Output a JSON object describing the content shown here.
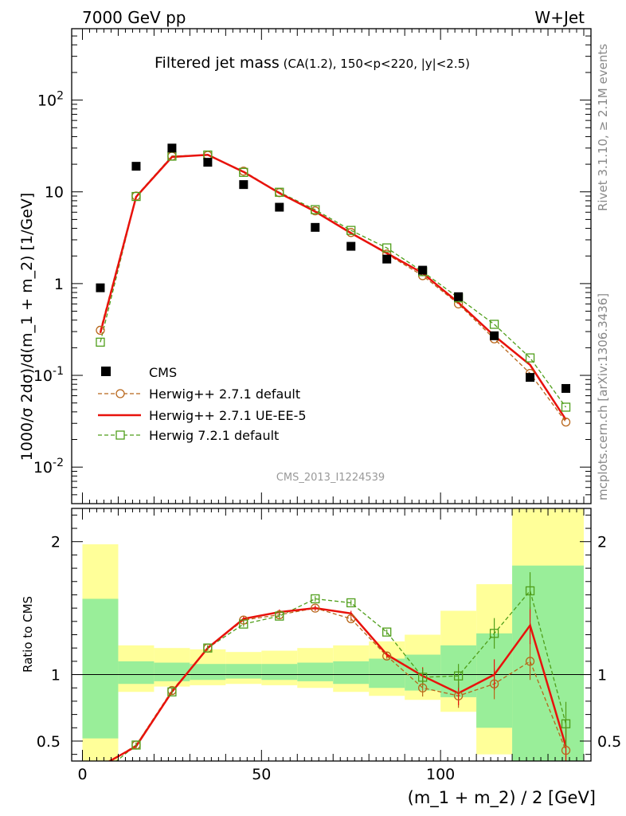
{
  "header": {
    "left": "7000 GeV pp",
    "right": "W+Jet"
  },
  "side_labels": {
    "rivet": "Rivet 3.1.10, ≥ 2.1M events",
    "mcplots": "mcplots.cern.ch [arXiv:1306.3436]"
  },
  "chart_data": [
    {
      "type": "scatter",
      "panel": "main",
      "title": "Filtered jet mass",
      "title_sub": "(CA(1.2), 150<p_T<220, |y|<2.5)",
      "ylabel": "1000/σ 2dσ)/d(m_1 + m_2) [1/GeV]",
      "yscale": "log",
      "ylim": [
        0.004,
        600
      ],
      "xlim": [
        -3,
        142
      ],
      "yticks": [
        "10^-2",
        "10^-1",
        "1",
        "10",
        "10^2"
      ],
      "watermark": "CMS_2013_I1224539",
      "legend_position": "bottom-left",
      "x": [
        5,
        15,
        25,
        35,
        45,
        55,
        65,
        75,
        85,
        95,
        105,
        115,
        125,
        135
      ],
      "series": [
        {
          "name": "CMS",
          "style": "square-marker",
          "color": "#000000",
          "values": [
            0.9,
            19,
            30,
            21,
            12,
            6.8,
            4.1,
            2.55,
            1.85,
            1.4,
            0.72,
            0.27,
            0.095,
            0.072
          ]
        },
        {
          "name": "Herwig++ 2.7.1 default",
          "style": "dashed-circle",
          "color": "#b8661a",
          "values": [
            0.31,
            9.0,
            24.5,
            25.0,
            16.8,
            9.8,
            6.2,
            3.6,
            2.1,
            1.22,
            0.6,
            0.25,
            0.105,
            0.031
          ]
        },
        {
          "name": "Herwig++ 2.7.1 UE-EE-5",
          "style": "solid-line",
          "color": "#e8120c",
          "values": [
            0.29,
            8.8,
            24.0,
            25.3,
            16.5,
            9.7,
            6.1,
            3.55,
            2.15,
            1.3,
            0.62,
            0.27,
            0.13,
            0.033
          ]
        },
        {
          "name": "Herwig 7.2.1 default",
          "style": "dashed-square",
          "color": "#4f9e1a",
          "values": [
            0.23,
            8.9,
            24.5,
            25.2,
            16.3,
            9.9,
            6.4,
            3.8,
            2.45,
            1.35,
            0.7,
            0.36,
            0.155,
            0.045
          ]
        }
      ]
    },
    {
      "type": "line",
      "panel": "ratio",
      "ylabel": "Ratio to CMS",
      "xlabel": "(m_1 + m_2) / 2 [GeV]",
      "ylim": [
        0.35,
        2.25
      ],
      "xlim": [
        -3,
        142
      ],
      "xticks": [
        0,
        50,
        100
      ],
      "yticks": [
        0.5,
        1,
        2
      ],
      "bands": {
        "edges": [
          0,
          10,
          20,
          30,
          40,
          50,
          60,
          70,
          80,
          90,
          100,
          110,
          120,
          140
        ],
        "yellow_lo": [
          0.34,
          0.87,
          0.91,
          0.92,
          0.93,
          0.92,
          0.9,
          0.87,
          0.84,
          0.81,
          0.72,
          0.4,
          0.35
        ],
        "yellow_hi": [
          1.98,
          1.22,
          1.2,
          1.19,
          1.17,
          1.18,
          1.2,
          1.22,
          1.25,
          1.3,
          1.48,
          1.68,
          2.3
        ],
        "green_lo": [
          0.52,
          0.93,
          0.95,
          0.96,
          0.97,
          0.96,
          0.95,
          0.93,
          0.9,
          0.88,
          0.83,
          0.6,
          0.35
        ],
        "green_hi": [
          1.57,
          1.1,
          1.09,
          1.08,
          1.08,
          1.08,
          1.09,
          1.1,
          1.12,
          1.15,
          1.22,
          1.31,
          1.82
        ]
      },
      "x": [
        5,
        15,
        25,
        35,
        45,
        55,
        65,
        75,
        85,
        95,
        105,
        115,
        125,
        135
      ],
      "series": [
        {
          "name": "Herwig++ 2.7.1 default",
          "color": "#b8661a",
          "values": [
            0.3,
            0.47,
            0.88,
            1.2,
            1.41,
            1.45,
            1.5,
            1.42,
            1.14,
            0.9,
            0.84,
            0.93,
            1.1,
            0.43
          ]
        },
        {
          "name": "Herwig++ 2.7.1 UE-EE-5",
          "color": "#e8120c",
          "values": [
            0.31,
            0.46,
            0.87,
            1.2,
            1.42,
            1.47,
            1.5,
            1.46,
            1.15,
            0.99,
            0.86,
            1.0,
            1.37,
            0.46
          ]
        },
        {
          "name": "Herwig 7.2.1 default",
          "color": "#4f9e1a",
          "values": [
            0.25,
            0.47,
            0.87,
            1.2,
            1.38,
            1.44,
            1.57,
            1.54,
            1.32,
            0.98,
            0.99,
            1.31,
            1.63,
            0.63
          ]
        }
      ]
    }
  ]
}
